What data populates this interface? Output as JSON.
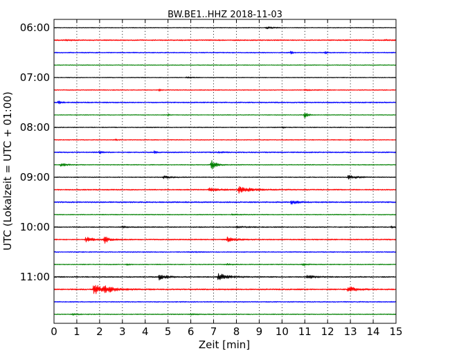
{
  "chart_data": {
    "type": "line",
    "title": "BW.BE1..HHZ 2018-11-03",
    "xlabel": "Zeit  [min]",
    "ylabel": "UTC (Lokalzeit = UTC + 01:00)",
    "xlim": [
      0,
      15
    ],
    "x_ticks": [
      0,
      1,
      2,
      3,
      4,
      5,
      6,
      7,
      8,
      9,
      10,
      11,
      12,
      13,
      14,
      15
    ],
    "y_tick_labels": [
      "06:00",
      "07:00",
      "08:00",
      "09:00",
      "10:00",
      "11:00"
    ],
    "grid": "vertical dotted",
    "trace_interval_min": 15,
    "colors": [
      "#000000",
      "#ff0000",
      "#0000ff",
      "#008000"
    ],
    "series": [
      {
        "label": "06:00",
        "color": "#000000",
        "noise": 0.5,
        "events": [
          [
            9.3,
            1.5,
            0.3
          ]
        ]
      },
      {
        "label": "06:15",
        "color": "#ff0000",
        "noise": 0.8,
        "events": [
          [
            0.5,
            0.8,
            0.3
          ],
          [
            14.5,
            0.6,
            0.3
          ]
        ]
      },
      {
        "label": "06:30",
        "color": "#0000ff",
        "noise": 0.7,
        "events": [
          [
            10.4,
            3.5,
            0.05
          ],
          [
            11.9,
            3.0,
            0.05
          ]
        ]
      },
      {
        "label": "06:45",
        "color": "#008000",
        "noise": 0.5,
        "events": []
      },
      {
        "label": "07:00",
        "color": "#000000",
        "noise": 0.5,
        "events": [
          [
            5.8,
            0.8,
            0.3
          ]
        ]
      },
      {
        "label": "07:15",
        "color": "#ff0000",
        "noise": 0.6,
        "events": [
          [
            4.6,
            1.5,
            0.1
          ],
          [
            11.0,
            0.8,
            0.3
          ]
        ]
      },
      {
        "label": "07:30",
        "color": "#0000ff",
        "noise": 0.8,
        "events": [
          [
            0.2,
            2.5,
            0.1
          ]
        ]
      },
      {
        "label": "07:45",
        "color": "#008000",
        "noise": 0.5,
        "events": [
          [
            5.0,
            2.0,
            0.05
          ],
          [
            11.0,
            6.0,
            0.1
          ]
        ]
      },
      {
        "label": "08:00",
        "color": "#000000",
        "noise": 0.6,
        "events": [
          [
            10.0,
            1.5,
            0.1
          ]
        ]
      },
      {
        "label": "08:15",
        "color": "#ff0000",
        "noise": 0.6,
        "events": [
          [
            2.7,
            1.0,
            0.1
          ],
          [
            13.0,
            0.8,
            0.1
          ]
        ]
      },
      {
        "label": "08:30",
        "color": "#0000ff",
        "noise": 0.8,
        "events": [
          [
            2.0,
            1.8,
            0.1
          ],
          [
            4.4,
            1.8,
            0.1
          ],
          [
            7.2,
            0.8,
            0.3
          ]
        ]
      },
      {
        "label": "08:45",
        "color": "#008000",
        "noise": 0.6,
        "events": [
          [
            0.3,
            2.0,
            0.3
          ],
          [
            6.9,
            7.0,
            0.2
          ]
        ]
      },
      {
        "label": "09:00",
        "color": "#000000",
        "noise": 0.6,
        "events": [
          [
            4.8,
            2.0,
            0.3
          ],
          [
            12.9,
            2.5,
            0.4
          ]
        ]
      },
      {
        "label": "09:15",
        "color": "#ff0000",
        "noise": 0.8,
        "events": [
          [
            6.8,
            2.5,
            0.4
          ],
          [
            8.1,
            4.5,
            0.5
          ]
        ]
      },
      {
        "label": "09:30",
        "color": "#0000ff",
        "noise": 0.9,
        "events": [
          [
            10.4,
            2.5,
            0.3
          ]
        ]
      },
      {
        "label": "09:45",
        "color": "#008000",
        "noise": 0.6,
        "events": [
          [
            7.8,
            0.8,
            0.3
          ]
        ]
      },
      {
        "label": "10:00",
        "color": "#000000",
        "noise": 0.7,
        "events": [
          [
            3.0,
            1.2,
            0.2
          ],
          [
            8.0,
            1.0,
            0.5
          ],
          [
            14.8,
            1.5,
            0.1
          ]
        ]
      },
      {
        "label": "10:15",
        "color": "#ff0000",
        "noise": 0.8,
        "events": [
          [
            1.4,
            3.5,
            0.3
          ],
          [
            2.2,
            5.5,
            0.2
          ],
          [
            7.6,
            3.5,
            0.3
          ]
        ]
      },
      {
        "label": "10:30",
        "color": "#0000ff",
        "noise": 0.7,
        "events": [
          [
            6.0,
            0.6,
            0.3
          ]
        ]
      },
      {
        "label": "10:45",
        "color": "#008000",
        "noise": 0.6,
        "events": [
          [
            3.2,
            1.0,
            0.1
          ],
          [
            7.6,
            1.0,
            0.2
          ],
          [
            10.9,
            1.8,
            0.2
          ]
        ]
      },
      {
        "label": "11:00",
        "color": "#000000",
        "noise": 0.8,
        "events": [
          [
            4.6,
            4.0,
            0.3
          ],
          [
            7.2,
            5.0,
            0.4
          ],
          [
            11.1,
            2.5,
            0.3
          ]
        ]
      },
      {
        "label": "11:15",
        "color": "#ff0000",
        "noise": 0.9,
        "events": [
          [
            1.75,
            10.0,
            0.25
          ],
          [
            2.2,
            5.0,
            0.4
          ],
          [
            12.9,
            5.0,
            0.3
          ]
        ]
      },
      {
        "label": "11:30",
        "color": "#0000ff",
        "noise": 0.7,
        "events": []
      },
      {
        "label": "11:45",
        "color": "#008000",
        "noise": 0.6,
        "events": [
          [
            0.8,
            0.8,
            0.3
          ],
          [
            6.0,
            0.8,
            0.3
          ]
        ]
      }
    ]
  }
}
